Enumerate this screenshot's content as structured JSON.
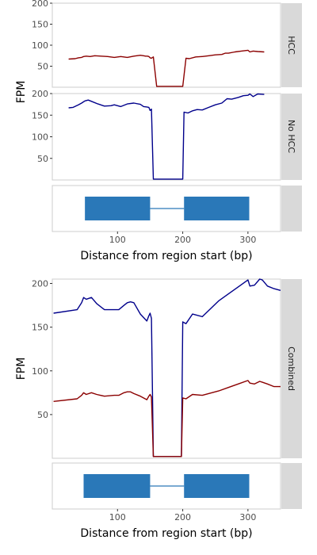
{
  "axis_title_y": "FPM",
  "axis_title_x": "Distance from region start (bp)",
  "colors": {
    "hcc": "#8b0000",
    "nohcc": "#00008b",
    "gene": "#2a78b8",
    "strip": "#d9d9d9",
    "border": "#cccccc"
  },
  "chart_data": [
    {
      "type": "line",
      "facet": "HCC",
      "strip_label": "HCC",
      "xlim": [
        0,
        350
      ],
      "ylim": [
        0,
        200
      ],
      "y_ticks": [
        "50",
        "100",
        "150",
        "200"
      ],
      "series": [
        {
          "color": "#8b0000",
          "x": [
            25,
            35,
            40,
            45,
            48,
            52,
            58,
            65,
            75,
            85,
            95,
            105,
            115,
            125,
            135,
            140,
            143,
            146,
            148,
            150,
            152,
            155,
            160,
            200,
            205,
            210,
            220,
            230,
            240,
            250,
            260,
            265,
            270,
            280,
            290,
            295,
            300,
            303,
            308,
            315,
            325
          ],
          "y": [
            67,
            68,
            70,
            71,
            73,
            74,
            73,
            75,
            74,
            73,
            71,
            73,
            71,
            74,
            76,
            75,
            74,
            74,
            73,
            70,
            69,
            72,
            2,
            2,
            69,
            68,
            72,
            73,
            75,
            77,
            78,
            81,
            81,
            84,
            86,
            87,
            88,
            84,
            86,
            85,
            84
          ]
        }
      ]
    },
    {
      "type": "line",
      "facet": "No HCC",
      "strip_label": "No HCC",
      "xlim": [
        0,
        350
      ],
      "ylim": [
        0,
        200
      ],
      "y_ticks": [
        "50",
        "100",
        "150",
        "200"
      ],
      "series": [
        {
          "color": "#00008b",
          "x": [
            25,
            32,
            40,
            45,
            50,
            55,
            60,
            70,
            80,
            90,
            95,
            100,
            105,
            115,
            125,
            135,
            140,
            145,
            148,
            150,
            152,
            155,
            200,
            202,
            208,
            215,
            222,
            230,
            240,
            250,
            260,
            268,
            275,
            285,
            293,
            300,
            303,
            308,
            315,
            325
          ],
          "y": [
            167,
            168,
            174,
            178,
            183,
            185,
            182,
            176,
            171,
            172,
            174,
            172,
            170,
            176,
            178,
            175,
            170,
            169,
            168,
            161,
            164,
            2,
            2,
            157,
            155,
            160,
            163,
            162,
            168,
            174,
            178,
            188,
            187,
            191,
            195,
            196,
            199,
            193,
            199,
            198
          ]
        }
      ]
    },
    {
      "type": "line",
      "facet": "Combined",
      "strip_label": "Combined",
      "xlim": [
        0,
        350
      ],
      "ylim": [
        0,
        205
      ],
      "y_ticks": [
        "50",
        "100",
        "150",
        "200"
      ],
      "series": [
        {
          "color": "#00008b",
          "x": [
            2,
            38,
            45,
            48,
            52,
            60,
            68,
            80,
            95,
            102,
            110,
            115,
            120,
            125,
            135,
            145,
            148,
            150,
            152,
            155,
            198,
            200,
            205,
            215,
            230,
            255,
            270,
            285,
            300,
            303,
            310,
            318,
            322,
            330,
            340,
            350
          ],
          "y": [
            166,
            170,
            178,
            184,
            182,
            184,
            177,
            170,
            170,
            170,
            175,
            178,
            179,
            178,
            165,
            157,
            163,
            166,
            160,
            2,
            2,
            156,
            154,
            165,
            162,
            180,
            188,
            196,
            204,
            197,
            198,
            205,
            204,
            197,
            194,
            192
          ]
        },
        {
          "color": "#8b0000",
          "x": [
            2,
            38,
            45,
            48,
            52,
            60,
            68,
            80,
            95,
            102,
            110,
            115,
            120,
            125,
            135,
            145,
            148,
            150,
            152,
            155,
            198,
            200,
            205,
            215,
            230,
            255,
            270,
            285,
            300,
            303,
            310,
            318,
            322,
            330,
            340,
            350
          ],
          "y": [
            65,
            68,
            72,
            75,
            73,
            75,
            73,
            71,
            72,
            72,
            75,
            76,
            76,
            74,
            71,
            67,
            71,
            73,
            70,
            2,
            2,
            69,
            68,
            73,
            72,
            77,
            81,
            85,
            89,
            86,
            85,
            88,
            87,
            85,
            82,
            82
          ]
        }
      ]
    }
  ],
  "gene_tracks": [
    {
      "facet": "gene-model-top",
      "xlim": [
        0,
        350
      ],
      "x_ticks": [
        "100",
        "200",
        "300"
      ],
      "exons": [
        {
          "start": 50,
          "end": 150
        },
        {
          "start": 202,
          "end": 302
        }
      ],
      "intron": {
        "start": 150,
        "end": 202
      }
    },
    {
      "facet": "gene-model-bottom",
      "xlim": [
        0,
        350
      ],
      "x_ticks": [
        "100",
        "200",
        "300"
      ],
      "exons": [
        {
          "start": 48,
          "end": 150
        },
        {
          "start": 202,
          "end": 302
        }
      ],
      "intron": {
        "start": 150,
        "end": 202
      }
    }
  ]
}
